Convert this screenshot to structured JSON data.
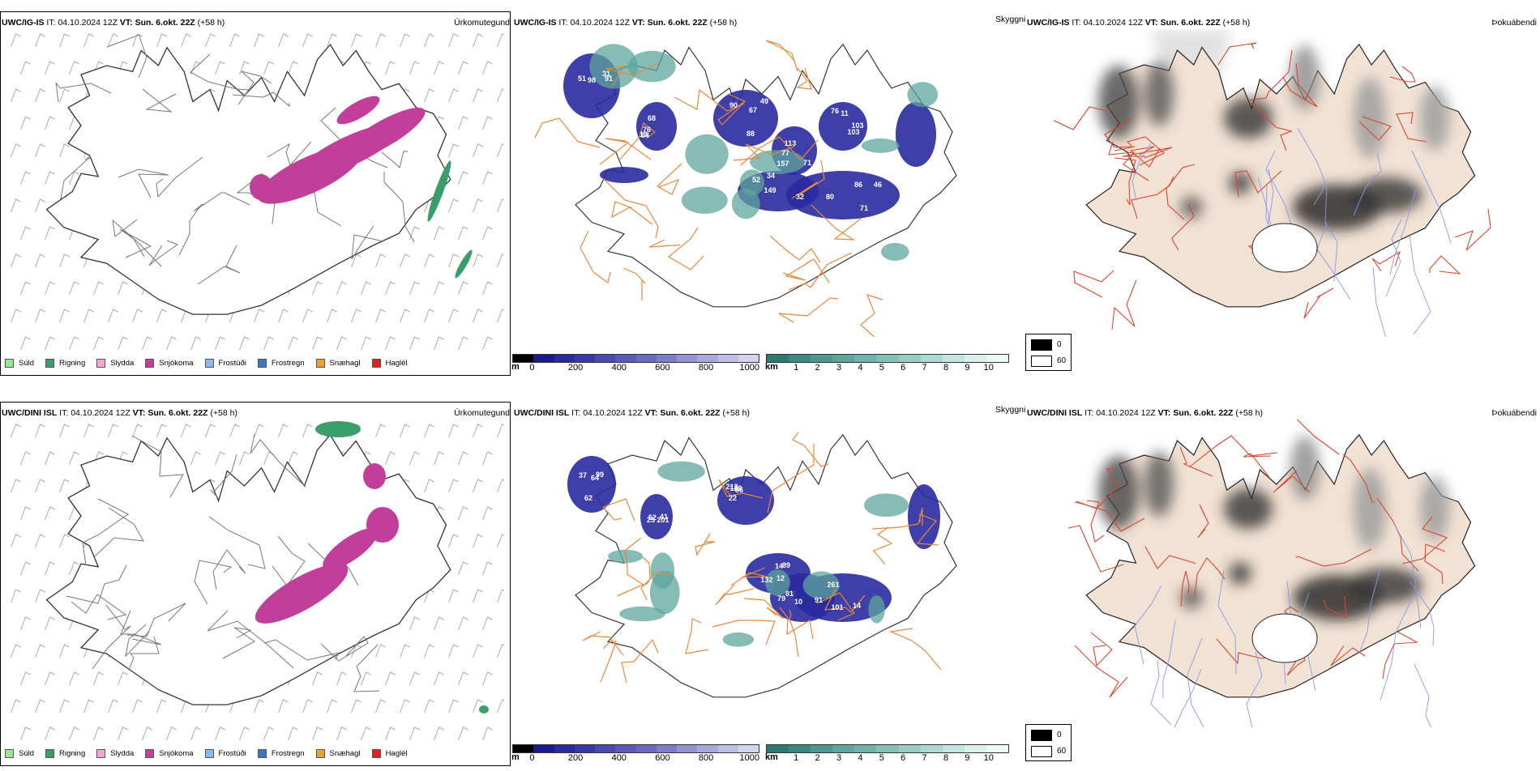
{
  "rows": [
    {
      "model": "UWC/IG-IS",
      "it_label": "IT:",
      "it_value": "04.10.2024 12Z",
      "vt_label": "VT:",
      "vt_value": "Sun. 6.okt. 22Z",
      "lead": "(+58 h)",
      "prec_label": "Úrkomutegund",
      "sky_label": "Skyggni",
      "thok_label": "Þokuábendi",
      "numbers": [
        "31",
        "51",
        "91",
        "98",
        "76",
        "84",
        "68",
        "13",
        "88",
        "67",
        "90",
        "49",
        "32",
        "52",
        "149",
        "34",
        "71",
        "77",
        "113",
        "157",
        "103",
        "76",
        "103",
        "11",
        "80",
        "71",
        "86",
        "46"
      ]
    },
    {
      "model": "UWC/DINI ISL",
      "it_label": "IT:",
      "it_value": "04.10.2024 12Z",
      "vt_label": "VT:",
      "vt_value": "Sun. 6.okt. 22Z",
      "lead": "(+58 h)",
      "prec_label": "Úrkomutegund",
      "sky_label": "Skyggni",
      "thok_label": "Þokuábendi",
      "numbers": [
        "62",
        "37",
        "99",
        "64",
        "52",
        "25",
        "201",
        "41",
        "129",
        "86",
        "22",
        "212",
        "14",
        "12",
        "132",
        "89",
        "10",
        "91",
        "81",
        "79",
        "101",
        "261",
        "14"
      ]
    }
  ],
  "prec_legend": [
    {
      "label": "Súld",
      "color": "#90ee90"
    },
    {
      "label": "Rigning",
      "color": "#3a9e6a"
    },
    {
      "label": "Slydda",
      "color": "#f4a6d7"
    },
    {
      "label": "Snjókoma",
      "color": "#c13f9b"
    },
    {
      "label": "Frostúði",
      "color": "#8db9f0"
    },
    {
      "label": "Frostregn",
      "color": "#3a76c4"
    },
    {
      "label": "Snæhagl",
      "color": "#f0a030"
    },
    {
      "label": "Haglél",
      "color": "#e02020"
    }
  ],
  "cbar_m": {
    "unit": "m",
    "ticks": [
      "0",
      "200",
      "400",
      "600",
      "800",
      "1000"
    ],
    "colors": [
      "#000000",
      "#1a1a8c",
      "#2a2aa0",
      "#3838a8",
      "#4a4ab0",
      "#5a5ab8",
      "#6a6ac0",
      "#7e7ec8",
      "#9393d2",
      "#a8a8dc",
      "#bebee6",
      "#d4d4f0"
    ]
  },
  "cbar_km": {
    "unit": "km",
    "ticks": [
      "1",
      "2",
      "3",
      "4",
      "5",
      "6",
      "7",
      "8",
      "9",
      "10"
    ],
    "colors": [
      "#2a7a72",
      "#3b8a80",
      "#4c988e",
      "#5ea69c",
      "#70b3aa",
      "#84c0b8",
      "#98ccc5",
      "#aed8d2",
      "#c4e4df",
      "#daefec",
      "#eef8f6"
    ]
  },
  "fog_legend": {
    "items": [
      {
        "label": "0",
        "color": "#000000"
      },
      {
        "label": "60",
        "color": "#ffffff"
      }
    ]
  },
  "colors": {
    "snow": "#c13f9b",
    "rain": "#3a9e6a",
    "sleet": "#f4a6d7",
    "vis_blue": "#2a2aa0",
    "vis_teal": "#5ea69c",
    "roads": "#e8883a",
    "land": "#f2e2d4",
    "red_roads": "#d9452e",
    "rivers": "#8899ee"
  }
}
